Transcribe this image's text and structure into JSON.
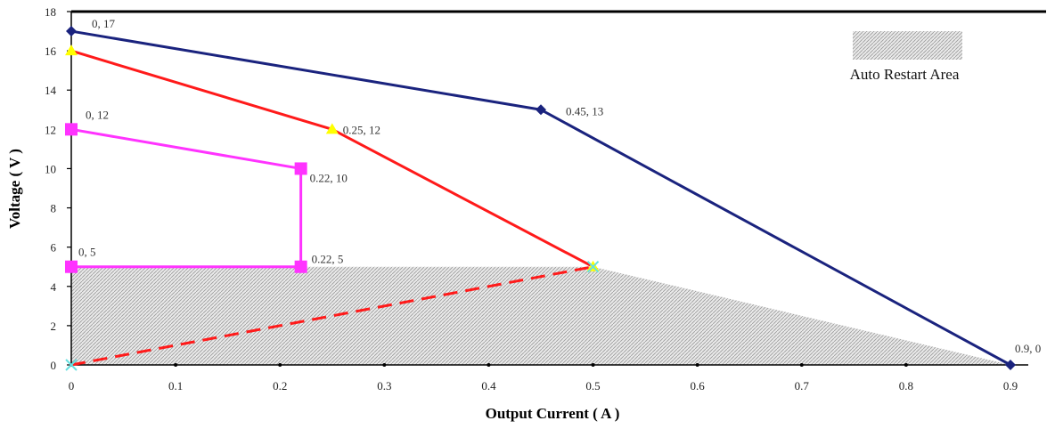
{
  "chart_data": {
    "type": "line",
    "xlabel": "Output Current ( A )",
    "ylabel": "Voltage ( V )",
    "xlim": [
      0,
      0.9
    ],
    "ylim": [
      0,
      18
    ],
    "x_ticks": [
      0,
      0.1,
      0.2,
      0.3,
      0.4,
      0.5,
      0.6,
      0.7,
      0.8,
      0.9
    ],
    "y_ticks": [
      0,
      2,
      4,
      6,
      8,
      10,
      12,
      14,
      16,
      18
    ],
    "x_tick_labels": [
      "0",
      "0.1",
      "0.2",
      "0.3",
      "0.4",
      "0.5",
      "0.6",
      "0.7",
      "0.8",
      "0.9"
    ],
    "y_tick_labels": [
      "0",
      "2",
      "4",
      "6",
      "8",
      "10",
      "12",
      "14",
      "16",
      "18"
    ],
    "grid": false,
    "legend": {
      "placement": "top-right",
      "text": "Auto Restart Area"
    },
    "auto_restart_area": {
      "points": [
        [
          0,
          0
        ],
        [
          0,
          5
        ],
        [
          0.5,
          5
        ],
        [
          0.9,
          0
        ]
      ],
      "color": "#bdbdbd"
    },
    "series": [
      {
        "color": "#1a237e",
        "marker": "diamond",
        "dashed": false,
        "points": [
          [
            0,
            17
          ],
          [
            0.45,
            13
          ],
          [
            0.9,
            0
          ]
        ]
      },
      {
        "color": "#ff1a1a",
        "marker": "triangle",
        "marker_color": "#ffff00",
        "dashed": false,
        "points": [
          [
            0,
            16
          ],
          [
            0.25,
            12
          ],
          [
            0.5,
            5
          ]
        ]
      },
      {
        "color": "#ff33ff",
        "marker": "square",
        "dashed": false,
        "points": [
          [
            0,
            12
          ],
          [
            0.22,
            10
          ],
          [
            0.22,
            5
          ],
          [
            0,
            5
          ]
        ]
      },
      {
        "color": "#ff1a1a",
        "marker": "x",
        "marker_color": "#66e0e0",
        "dashed": true,
        "points": [
          [
            0,
            0
          ],
          [
            0.5,
            5
          ]
        ]
      }
    ],
    "point_labels": [
      {
        "x": 0,
        "y": 17,
        "text": "0, 17"
      },
      {
        "x": 0.45,
        "y": 13,
        "text": "0.45, 13"
      },
      {
        "x": 0.9,
        "y": 0,
        "text": "0.9, 0"
      },
      {
        "x": 0.25,
        "y": 12,
        "text": "0.25, 12"
      },
      {
        "x": 0,
        "y": 12,
        "text": "0, 12"
      },
      {
        "x": 0.22,
        "y": 10,
        "text": "0.22, 10"
      },
      {
        "x": 0.22,
        "y": 5,
        "text": "0.22, 5"
      },
      {
        "x": 0,
        "y": 5,
        "text": "0, 5"
      }
    ]
  }
}
